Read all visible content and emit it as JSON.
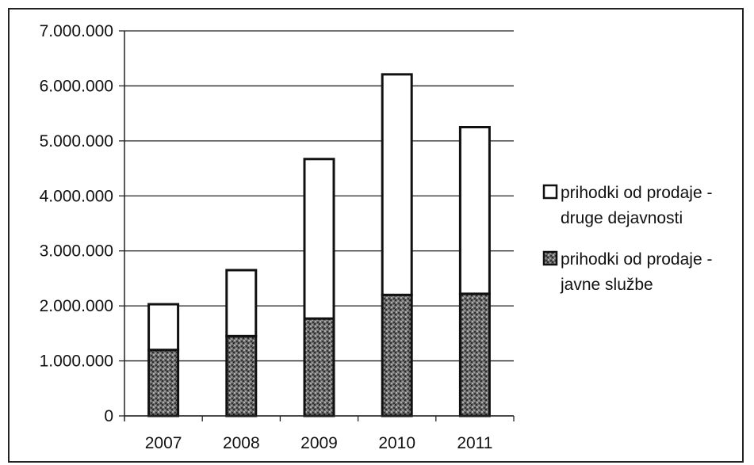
{
  "chart_data": {
    "type": "bar",
    "stacked": true,
    "categories": [
      "2007",
      "2008",
      "2009",
      "2010",
      "2011"
    ],
    "series": [
      {
        "name": "prihodki od prodaje - javne službe",
        "values": [
          1200000,
          1450000,
          1770000,
          2200000,
          2220000
        ],
        "color": "#555555",
        "pattern": "speckled"
      },
      {
        "name": "prihodki od prodaje - druge dejavnosti",
        "values": [
          830000,
          1200000,
          2900000,
          4010000,
          3030000
        ],
        "color": "#ffffff",
        "pattern": "none"
      }
    ],
    "title": "",
    "xlabel": "",
    "ylabel": "",
    "ylim": [
      0,
      7000000
    ],
    "yticks": [
      0,
      1000000,
      2000000,
      3000000,
      4000000,
      5000000,
      6000000,
      7000000
    ],
    "ytick_labels": [
      "0",
      "1.000.000",
      "2.000.000",
      "3.000.000",
      "4.000.000",
      "5.000.000",
      "6.000.000",
      "7.000.000"
    ],
    "grid": true,
    "legend_position": "right"
  },
  "legend": {
    "items": [
      {
        "line1": "prihodki od prodaje -",
        "line2": "druge dejavnosti",
        "icon": "white-square"
      },
      {
        "line1": "prihodki od prodaje -",
        "line2": "javne službe",
        "icon": "speckled-square"
      }
    ]
  }
}
